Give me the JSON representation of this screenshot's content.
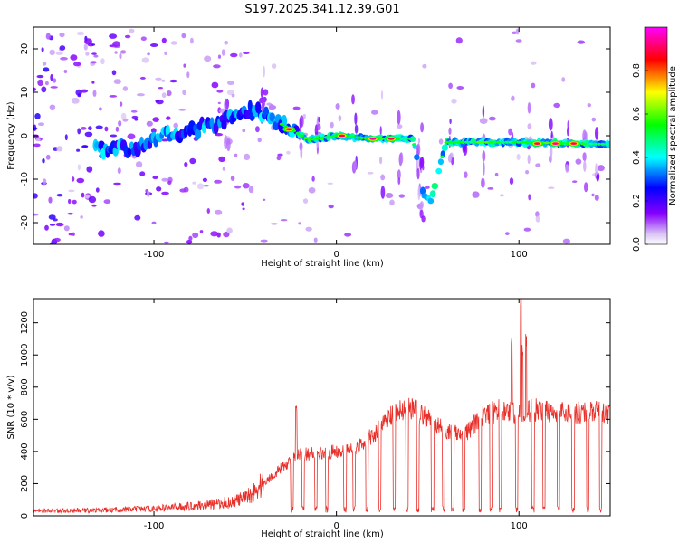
{
  "figure": {
    "title": "S197.2025.341.12.39.G01"
  },
  "chart_data": [
    {
      "type": "heatmap",
      "title": "S197.2025.341.12.39.G01",
      "xlabel": "Height of straight line (km)",
      "ylabel": "Frequency (Hz)",
      "xlim": [
        -166,
        150
      ],
      "ylim": [
        -25,
        25
      ],
      "x_ticks": [
        -100,
        0,
        100
      ],
      "y_ticks": [
        -20,
        -10,
        0,
        10,
        20
      ],
      "colorbar": {
        "label": "Normalized spectral amplitude",
        "range": [
          0,
          1
        ],
        "ticks": [
          0.0,
          0.2,
          0.4,
          0.6,
          0.8
        ],
        "colors": [
          "#ffffff",
          "#8800ff",
          "#0000ff",
          "#00ffff",
          "#00ff00",
          "#ffff00",
          "#ff0000",
          "#ff00ff"
        ]
      },
      "ridge": {
        "description": "dominant frequency vs height",
        "points": [
          {
            "x": -125,
            "f": -3
          },
          {
            "x": -110,
            "f": -3
          },
          {
            "x": -95,
            "f": 0
          },
          {
            "x": -80,
            "f": 1
          },
          {
            "x": -65,
            "f": 3
          },
          {
            "x": -50,
            "f": 6
          },
          {
            "x": -40,
            "f": 5
          },
          {
            "x": -25,
            "f": 1.5
          },
          {
            "x": -15,
            "f": -1
          },
          {
            "x": 0,
            "f": 0
          },
          {
            "x": 20,
            "f": -0.7
          },
          {
            "x": 42,
            "f": -0.7
          },
          {
            "x": 48,
            "f": -14
          },
          {
            "x": 52,
            "f": -15
          },
          {
            "x": 60,
            "f": -1.5
          },
          {
            "x": 90,
            "f": -1.5
          },
          {
            "x": 100,
            "f": -1.5
          },
          {
            "x": 150,
            "f": -2
          }
        ],
        "peaks": [
          {
            "x": -26,
            "f": 1.5,
            "amp": 0.95
          },
          {
            "x": 3,
            "f": 0,
            "amp": 0.9
          },
          {
            "x": 20,
            "f": -0.7,
            "amp": 0.95
          },
          {
            "x": 30,
            "f": -0.7,
            "amp": 0.9
          },
          {
            "x": 110,
            "f": -1.8,
            "amp": 0.9
          },
          {
            "x": 120,
            "f": -1.8,
            "amp": 0.95
          },
          {
            "x": 130,
            "f": -1.8,
            "amp": 0.9
          }
        ]
      }
    },
    {
      "type": "line",
      "xlabel": "Height of straight line (km)",
      "ylabel": "SNR (10 * v/v)",
      "xlim": [
        -166,
        150
      ],
      "ylim": [
        0,
        1350
      ],
      "x_ticks": [
        -100,
        0,
        100
      ],
      "y_ticks": [
        0,
        200,
        400,
        600,
        800,
        1000,
        1200
      ],
      "series": [
        {
          "name": "SNR",
          "color": "#e8302a",
          "envelope": [
            {
              "x": -166,
              "y": 30
            },
            {
              "x": -130,
              "y": 35
            },
            {
              "x": -100,
              "y": 45
            },
            {
              "x": -80,
              "y": 60
            },
            {
              "x": -60,
              "y": 80
            },
            {
              "x": -50,
              "y": 110
            },
            {
              "x": -40,
              "y": 200
            },
            {
              "x": -30,
              "y": 300
            },
            {
              "x": -20,
              "y": 380
            },
            {
              "x": -10,
              "y": 390
            },
            {
              "x": 0,
              "y": 400
            },
            {
              "x": 10,
              "y": 420
            },
            {
              "x": 20,
              "y": 500
            },
            {
              "x": 30,
              "y": 620
            },
            {
              "x": 40,
              "y": 680
            },
            {
              "x": 50,
              "y": 600
            },
            {
              "x": 60,
              "y": 530
            },
            {
              "x": 70,
              "y": 500
            },
            {
              "x": 80,
              "y": 620
            },
            {
              "x": 90,
              "y": 660
            },
            {
              "x": 100,
              "y": 640
            },
            {
              "x": 110,
              "y": 660
            },
            {
              "x": 120,
              "y": 650
            },
            {
              "x": 130,
              "y": 640
            },
            {
              "x": 140,
              "y": 650
            },
            {
              "x": 150,
              "y": 630
            }
          ],
          "spikes": [
            {
              "x": -22,
              "y": 660
            },
            {
              "x": 96,
              "y": 1120
            },
            {
              "x": 101,
              "y": 1350
            },
            {
              "x": 102,
              "y": 1000
            },
            {
              "x": 104,
              "y": 1080
            }
          ]
        }
      ]
    }
  ]
}
